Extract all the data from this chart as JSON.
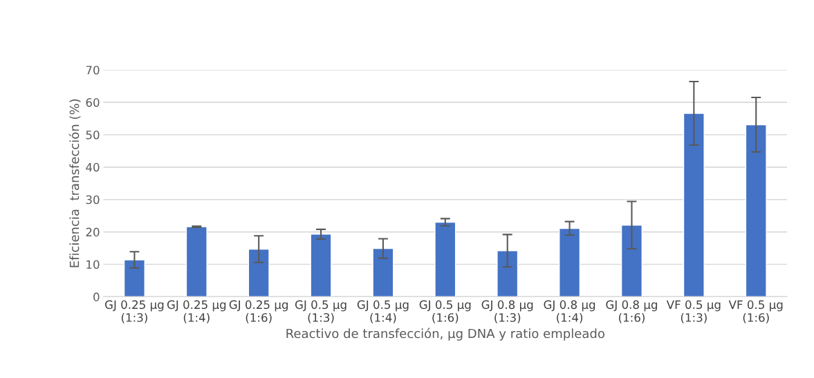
{
  "chart_data": {
    "type": "bar",
    "categories": [
      "GJ 0.25 µg (1:3)",
      "GJ 0.25 µg (1:4)",
      "GJ 0.25 µg (1:6)",
      "GJ 0.5 µg (1:3)",
      "GJ 0.5 µg (1:4)",
      "GJ 0.5 µg (1:6)",
      "GJ 0.8 µg (1:3)",
      "GJ 0.8 µg (1:4)",
      "GJ 0.8 µg (1:6)",
      "VF 0.5 µg (1:3)",
      "VF 0.5 µg (1:6)"
    ],
    "values": [
      11.4,
      21.6,
      14.7,
      19.3,
      14.9,
      23.0,
      14.2,
      21.1,
      22.1,
      56.6,
      53.1
    ],
    "errors": [
      2.5,
      0.2,
      4.1,
      1.5,
      3.0,
      1.1,
      5.0,
      2.1,
      7.3,
      9.8,
      8.4
    ],
    "color": "#4472c4",
    "xlabel": "Reactivo de transfección, µg DNA y ratio empleado",
    "ylabel": "Eficiencia  transfección (%)",
    "ylim": [
      0,
      70
    ],
    "yticks": [
      0,
      10,
      20,
      30,
      40,
      50,
      60,
      70
    ],
    "grid": "y",
    "legend": false
  }
}
